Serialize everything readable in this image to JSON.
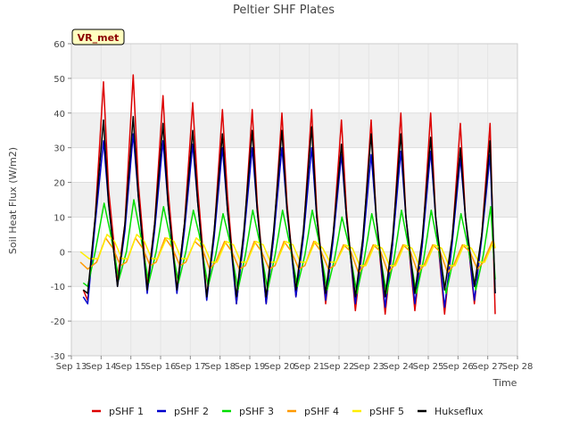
{
  "chart_data": {
    "type": "line",
    "title": "Peltier SHF Plates",
    "xlabel": "Time",
    "ylabel": "Soil Heat Flux (W/m2)",
    "tag": "VR_met",
    "xlim": [
      13,
      28
    ],
    "ylim": [
      -30,
      60
    ],
    "yticks": [
      -30,
      -20,
      -10,
      0,
      10,
      20,
      30,
      40,
      50,
      60
    ],
    "xticks": [
      13,
      14,
      15,
      16,
      17,
      18,
      19,
      20,
      21,
      22,
      23,
      24,
      25,
      26,
      27,
      28
    ],
    "xtick_labels": [
      "Sep 13",
      "Sep 14",
      "Sep 15",
      "Sep 16",
      "Sep 17",
      "Sep 18",
      "Sep 19",
      "Sep 20",
      "Sep 21",
      "Sep 22",
      "Sep 23",
      "Sep 24",
      "Sep 25",
      "Sep 26",
      "Sep 27",
      "Sep 28"
    ],
    "grid": true,
    "shaded_bands": true,
    "legend_position": "bottom",
    "series": [
      {
        "name": "pSHF 1",
        "color": "#dd0000",
        "x": [
          13.4,
          13.55,
          13.8,
          14.08,
          14.25,
          14.55,
          14.8,
          15.08,
          15.25,
          15.55,
          15.8,
          16.08,
          16.25,
          16.55,
          16.8,
          17.08,
          17.25,
          17.55,
          17.8,
          18.08,
          18.25,
          18.55,
          18.8,
          19.08,
          19.25,
          19.55,
          19.8,
          20.08,
          20.25,
          20.55,
          20.8,
          21.08,
          21.25,
          21.55,
          21.8,
          22.08,
          22.25,
          22.55,
          22.8,
          23.08,
          23.25,
          23.55,
          23.8,
          24.08,
          24.25,
          24.55,
          24.8,
          25.08,
          25.25,
          25.55,
          25.8,
          26.08,
          26.25,
          26.55,
          26.8,
          27.08,
          27.25
        ],
        "values": [
          -11,
          -14,
          10,
          49,
          18,
          -8,
          8,
          51,
          20,
          -10,
          8,
          45,
          18,
          -11,
          8,
          43,
          18,
          -13,
          5,
          41,
          16,
          -15,
          4,
          41,
          14,
          -15,
          4,
          40,
          14,
          -13,
          5,
          41,
          12,
          -15,
          4,
          38,
          12,
          -17,
          2,
          38,
          10,
          -18,
          2,
          40,
          10,
          -17,
          2,
          40,
          10,
          -18,
          3,
          37,
          10,
          -15,
          5,
          37,
          -18
        ]
      },
      {
        "name": "pSHF 2",
        "color": "#0000cc",
        "x": [
          13.4,
          13.55,
          13.8,
          14.08,
          14.25,
          14.55,
          14.8,
          15.08,
          15.25,
          15.55,
          15.8,
          16.08,
          16.25,
          16.55,
          16.8,
          17.08,
          17.25,
          17.55,
          17.8,
          18.08,
          18.25,
          18.55,
          18.8,
          19.08,
          19.25,
          19.55,
          19.8,
          20.08,
          20.25,
          20.55,
          20.8,
          21.08,
          21.25,
          21.55,
          21.8,
          22.08,
          22.25,
          22.55,
          22.8,
          23.08,
          23.25,
          23.55,
          23.8,
          24.08,
          24.25,
          24.55,
          24.8,
          25.08,
          25.25,
          25.55,
          25.8,
          26.08,
          26.25,
          26.55,
          26.8,
          27.08,
          27.25
        ],
        "values": [
          -13,
          -15,
          8,
          32,
          14,
          -10,
          6,
          34,
          16,
          -12,
          6,
          32,
          14,
          -12,
          6,
          31,
          14,
          -14,
          4,
          30,
          12,
          -15,
          4,
          30,
          12,
          -15,
          4,
          30,
          12,
          -13,
          4,
          30,
          10,
          -14,
          3,
          28,
          10,
          -15,
          2,
          28,
          10,
          -16,
          2,
          29,
          10,
          -15,
          2,
          29,
          10,
          -16,
          2,
          27,
          10,
          -14,
          4,
          28,
          -12
        ]
      },
      {
        "name": "pSHF 3",
        "color": "#00dd00",
        "x": [
          13.4,
          13.55,
          13.8,
          14.1,
          14.3,
          14.6,
          14.85,
          15.1,
          15.3,
          15.6,
          15.85,
          16.1,
          16.3,
          16.6,
          16.85,
          17.1,
          17.3,
          17.6,
          17.85,
          18.1,
          18.3,
          18.6,
          18.85,
          19.1,
          19.3,
          19.6,
          19.85,
          20.1,
          20.3,
          20.6,
          20.85,
          21.1,
          21.3,
          21.6,
          21.85,
          22.1,
          22.3,
          22.6,
          22.85,
          23.1,
          23.3,
          23.6,
          23.85,
          24.1,
          24.3,
          24.6,
          24.85,
          25.1,
          25.3,
          25.6,
          25.85,
          26.1,
          26.3,
          26.6,
          26.85,
          27.1,
          27.25
        ],
        "values": [
          -9,
          -10,
          0,
          14,
          6,
          -8,
          0,
          15,
          6,
          -9,
          0,
          13,
          5,
          -9,
          0,
          12,
          5,
          -10,
          -1,
          11,
          4,
          -11,
          -1,
          12,
          4,
          -11,
          -1,
          12,
          4,
          -10,
          -1,
          12,
          4,
          -11,
          -2,
          10,
          3,
          -12,
          -2,
          11,
          3,
          -12,
          -2,
          12,
          3,
          -12,
          -2,
          12,
          3,
          -12,
          -2,
          11,
          3,
          -11,
          -1,
          13,
          -8
        ]
      },
      {
        "name": "pSHF 4",
        "color": "#ff9900",
        "x": [
          13.3,
          13.55,
          13.85,
          14.15,
          14.4,
          14.65,
          14.85,
          15.15,
          15.4,
          15.65,
          15.85,
          16.15,
          16.4,
          16.65,
          16.85,
          17.15,
          17.4,
          17.65,
          17.85,
          18.15,
          18.4,
          18.65,
          18.85,
          19.15,
          19.4,
          19.65,
          19.85,
          20.15,
          20.4,
          20.65,
          20.85,
          21.15,
          21.4,
          21.65,
          21.85,
          22.15,
          22.4,
          22.65,
          22.85,
          23.15,
          23.4,
          23.65,
          23.85,
          24.15,
          24.4,
          24.65,
          24.85,
          25.15,
          25.4,
          25.65,
          25.85,
          26.15,
          26.4,
          26.65,
          26.85,
          27.15,
          27.25
        ],
        "values": [
          -3,
          -5,
          -3,
          4,
          1,
          -4,
          -3,
          4,
          1,
          -4,
          -3,
          4,
          1,
          -4,
          -3,
          3,
          1,
          -5,
          -3,
          3,
          0,
          -5,
          -4,
          3,
          0,
          -5,
          -4,
          3,
          0,
          -5,
          -4,
          3,
          0,
          -5,
          -4,
          2,
          0,
          -6,
          -4,
          2,
          0,
          -6,
          -4,
          2,
          0,
          -6,
          -4,
          2,
          0,
          -6,
          -4,
          2,
          0,
          -5,
          -3,
          3,
          1
        ]
      },
      {
        "name": "pSHF 5",
        "color": "#ffee00",
        "x": [
          13.3,
          13.6,
          13.9,
          14.2,
          14.45,
          14.7,
          14.9,
          15.2,
          15.45,
          15.7,
          15.9,
          16.2,
          16.45,
          16.7,
          16.9,
          17.2,
          17.45,
          17.7,
          17.9,
          18.2,
          18.45,
          18.7,
          18.9,
          19.2,
          19.45,
          19.7,
          19.9,
          20.2,
          20.45,
          20.7,
          20.9,
          21.2,
          21.45,
          21.7,
          21.9,
          22.2,
          22.45,
          22.7,
          22.9,
          23.2,
          23.45,
          23.7,
          23.9,
          24.2,
          24.45,
          24.7,
          24.9,
          25.2,
          25.45,
          25.7,
          25.9,
          26.2,
          26.45,
          26.7,
          26.9,
          27.2,
          27.25
        ],
        "values": [
          0,
          -2,
          -2,
          5,
          3,
          -2,
          -2,
          5,
          3,
          -2,
          -2,
          4,
          3,
          -2,
          -2,
          4,
          2,
          -3,
          -3,
          3,
          2,
          -3,
          -3,
          3,
          2,
          -3,
          -3,
          3,
          2,
          -3,
          -3,
          3,
          1,
          -3,
          -3,
          2,
          1,
          -4,
          -4,
          2,
          1,
          -4,
          -4,
          2,
          1,
          -4,
          -4,
          2,
          1,
          -4,
          -4,
          2,
          1,
          -3,
          -3,
          3,
          1
        ]
      },
      {
        "name": "Hukseflux",
        "color": "#000000",
        "x": [
          13.4,
          13.55,
          13.8,
          14.08,
          14.25,
          14.55,
          14.8,
          15.08,
          15.25,
          15.55,
          15.8,
          16.08,
          16.25,
          16.55,
          16.8,
          17.08,
          17.25,
          17.55,
          17.8,
          18.08,
          18.25,
          18.55,
          18.8,
          19.08,
          19.25,
          19.55,
          19.8,
          20.08,
          20.25,
          20.55,
          20.8,
          21.08,
          21.25,
          21.55,
          21.8,
          22.08,
          22.25,
          22.55,
          22.8,
          23.08,
          23.25,
          23.55,
          23.8,
          24.08,
          24.25,
          24.55,
          24.8,
          25.08,
          25.25,
          25.55,
          25.8,
          26.08,
          26.25,
          26.55,
          26.8,
          27.08,
          27.25
        ],
        "values": [
          -11,
          -12,
          10,
          38,
          14,
          -10,
          8,
          39,
          16,
          -11,
          8,
          37,
          14,
          -11,
          8,
          35,
          14,
          -13,
          6,
          34,
          12,
          -13,
          6,
          35,
          12,
          -13,
          6,
          35,
          12,
          -11,
          6,
          36,
          10,
          -12,
          5,
          31,
          10,
          -13,
          4,
          34,
          10,
          -13,
          4,
          34,
          10,
          -12,
          4,
          33,
          10,
          -11,
          4,
          30,
          10,
          -10,
          5,
          32,
          -12
        ]
      }
    ]
  }
}
